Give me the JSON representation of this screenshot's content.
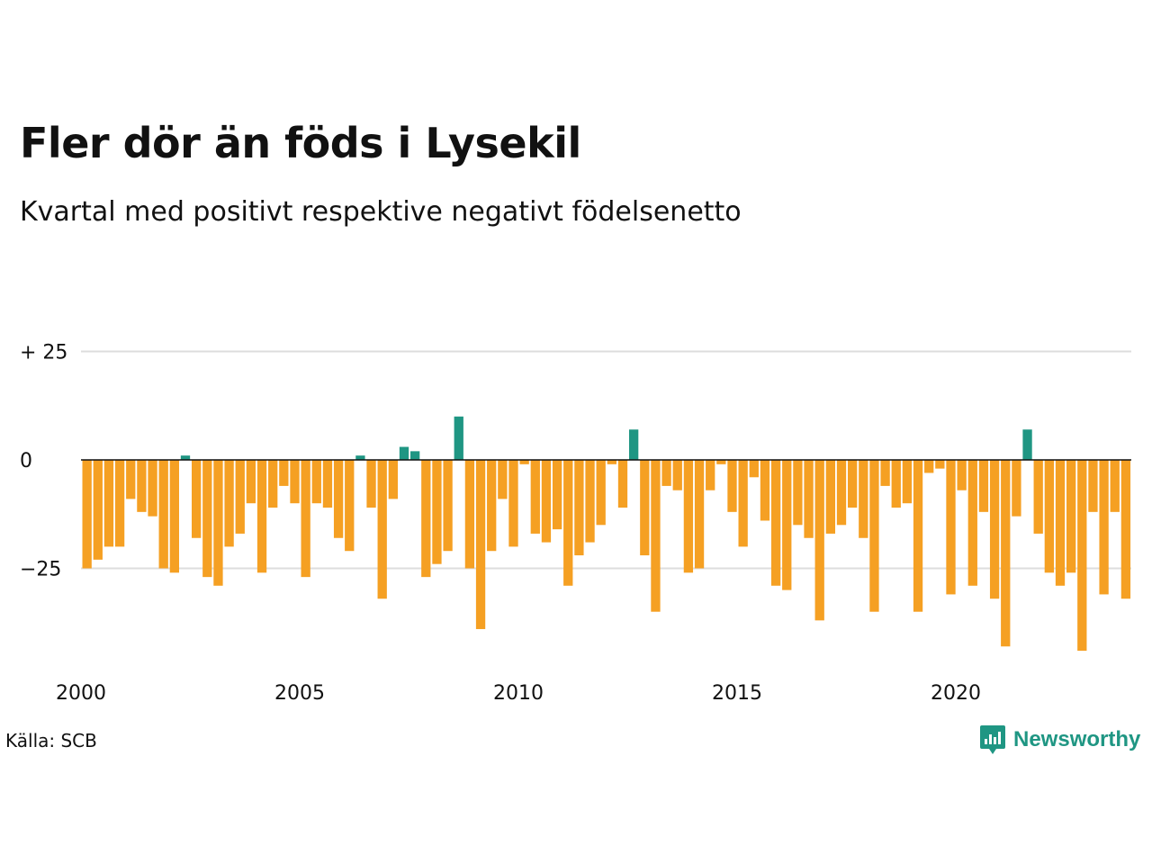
{
  "chart_data": {
    "type": "bar",
    "title": "Fler dör än föds i Lysekil",
    "subtitle": "Kvartal med positivt respektive negativt födelsenetto",
    "source": "Källa: SCB",
    "brand": "Newsworthy",
    "xlabel": "",
    "ylabel": "",
    "x_start_year": 2000,
    "quarters_per_year": 4,
    "values": [
      -25,
      -23,
      -20,
      -20,
      -9,
      -12,
      -13,
      -25,
      -26,
      1,
      -18,
      -27,
      -29,
      -20,
      -17,
      -10,
      -26,
      -11,
      -6,
      -10,
      -27,
      -10,
      -11,
      -18,
      -21,
      1,
      -11,
      -32,
      -9,
      3,
      2,
      -27,
      -24,
      -21,
      10,
      -25,
      -39,
      -21,
      -9,
      -20,
      -1,
      -17,
      -19,
      -16,
      -29,
      -22,
      -19,
      -15,
      -1,
      -11,
      7,
      -22,
      -35,
      -6,
      -7,
      -26,
      -25,
      -7,
      -1,
      -12,
      -20,
      -4,
      -14,
      -29,
      -30,
      -15,
      -18,
      -37,
      -17,
      -15,
      -11,
      -18,
      -35,
      -6,
      -11,
      -10,
      -35,
      -3,
      -2,
      -31,
      -7,
      -29,
      -12,
      -32,
      -43,
      -13,
      7,
      -17,
      -26,
      -29,
      -26,
      -44,
      -12,
      -31,
      -12,
      -32
    ],
    "ylim": [
      -50,
      25
    ],
    "yticks": [
      25,
      0,
      -25
    ],
    "ytick_labels": [
      "+ 25",
      "0",
      "−25"
    ],
    "xticks": [
      "2000",
      "2005",
      "2010",
      "2015",
      "2020"
    ],
    "colors": {
      "positive": "#1f9683",
      "negative": "#f5a023",
      "grid": "#dddddd",
      "axis": "#111111"
    },
    "grid": true,
    "legend": "none"
  }
}
